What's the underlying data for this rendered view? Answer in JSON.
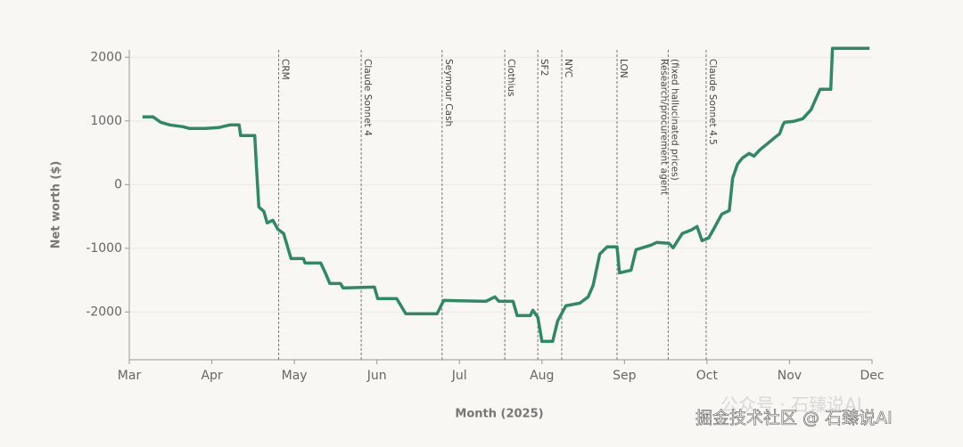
{
  "chart_data": {
    "type": "line",
    "xlabel": "Month (2025)",
    "ylabel": "Net worth ($)",
    "xlim": [
      3,
      12
    ],
    "ylim": [
      -2750,
      2200
    ],
    "xticks": [
      {
        "value": 3,
        "label": "Mar"
      },
      {
        "value": 4,
        "label": "Apr"
      },
      {
        "value": 5,
        "label": "May"
      },
      {
        "value": 6,
        "label": "Jun"
      },
      {
        "value": 7,
        "label": "Jul"
      },
      {
        "value": 8,
        "label": "Aug"
      },
      {
        "value": 9,
        "label": "Sep"
      },
      {
        "value": 10,
        "label": "Oct"
      },
      {
        "value": 11,
        "label": "Nov"
      },
      {
        "value": 12,
        "label": "Dec"
      }
    ],
    "yticks": [
      -2000,
      -1000,
      0,
      1000,
      2000
    ],
    "grid": true,
    "series": [
      {
        "color": "#2f8a63",
        "x": [
          3.16,
          3.29,
          3.38,
          3.49,
          3.65,
          3.73,
          3.92,
          4.08,
          4.22,
          4.33,
          4.35,
          4.52,
          4.54,
          4.57,
          4.63,
          4.67,
          4.74,
          4.8,
          4.87,
          4.96,
          5.11,
          5.13,
          5.32,
          5.38,
          5.43,
          5.56,
          5.59,
          5.97,
          6.01,
          6.24,
          6.35,
          6.73,
          6.81,
          7.32,
          7.43,
          7.48,
          7.65,
          7.7,
          7.86,
          7.89,
          7.95,
          8.0,
          8.13,
          8.19,
          8.29,
          8.46,
          8.56,
          8.62,
          8.7,
          8.79,
          8.91,
          8.94,
          9.08,
          9.14,
          9.32,
          9.39,
          9.54,
          9.59,
          9.7,
          9.81,
          9.88,
          9.94,
          10.02,
          10.08,
          10.18,
          10.27,
          10.31,
          10.37,
          10.43,
          10.51,
          10.57,
          10.64,
          10.72,
          10.81,
          10.88,
          10.92,
          10.94,
          11.05,
          11.16,
          11.26,
          11.37,
          11.5,
          11.52,
          11.64,
          11.97
        ],
        "values": [
          1063,
          1063,
          979,
          937,
          909,
          881,
          881,
          895,
          937,
          937,
          769,
          769,
          308,
          -350,
          -420,
          -601,
          -560,
          -700,
          -769,
          -1161,
          -1161,
          -1231,
          -1231,
          -1399,
          -1553,
          -1553,
          -1623,
          -1609,
          -1791,
          -1791,
          -2029,
          -2029,
          -1819,
          -1833,
          -1763,
          -1833,
          -1833,
          -2057,
          -2057,
          -1973,
          -2085,
          -2462,
          -2462,
          -2140,
          -1903,
          -1861,
          -1763,
          -1581,
          -1091,
          -979,
          -979,
          -1385,
          -1343,
          -1021,
          -951,
          -909,
          -923,
          -993,
          -769,
          -713,
          -658,
          -881,
          -839,
          -700,
          -462,
          -406,
          98,
          322,
          420,
          490,
          448,
          546,
          630,
          727,
          797,
          937,
          979,
          993,
          1035,
          1175,
          1497,
          1497,
          2140,
          2140,
          2140
        ]
      }
    ],
    "annotations": [
      {
        "x": 4.81,
        "label": "CRM"
      },
      {
        "x": 5.81,
        "label": "Claude Sonnet 4"
      },
      {
        "x": 6.79,
        "label": "Seymour Cash"
      },
      {
        "x": 7.55,
        "label": "Clothius"
      },
      {
        "x": 7.95,
        "label": "SF2"
      },
      {
        "x": 8.24,
        "label": "NYC"
      },
      {
        "x": 8.91,
        "label": "LON"
      },
      {
        "x": 9.53,
        "label": [
          "Research/procurement agent",
          "(fixed hallucinated prices)"
        ]
      },
      {
        "x": 9.99,
        "label": "Claude Sonnet 4.5"
      }
    ]
  },
  "watermark": {
    "faint": "公众号 · 石臻说AI",
    "main": "掘金技术社区 @ 石臻说AI"
  }
}
